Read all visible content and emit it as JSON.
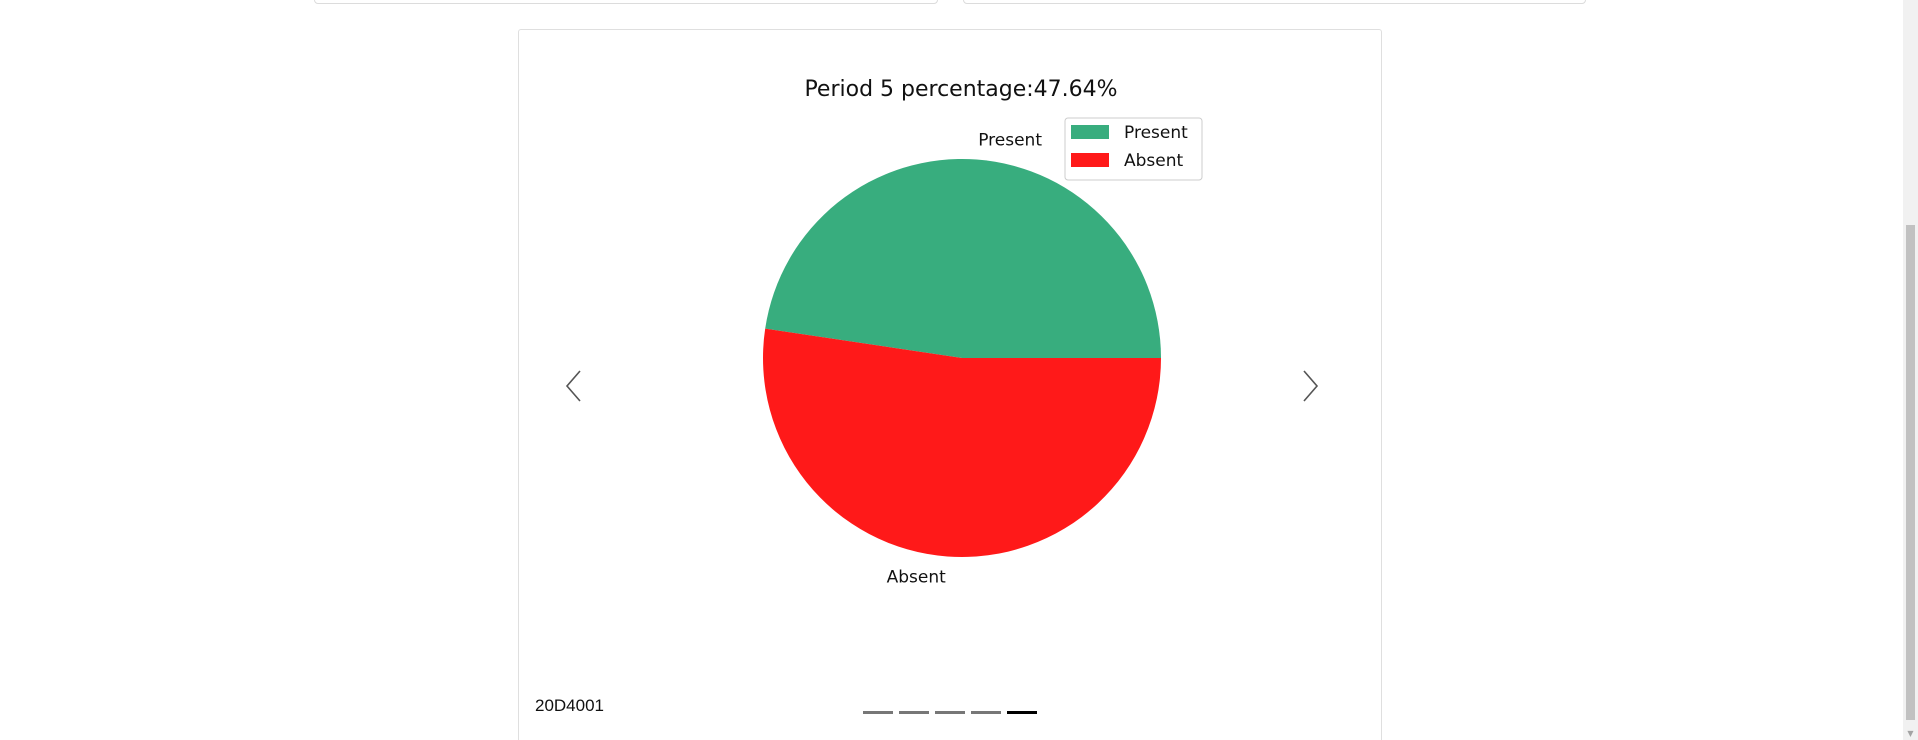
{
  "chart_data": {
    "type": "pie",
    "title": "Period 5 percentage:47.64%",
    "slices": [
      {
        "label": "Present",
        "value": 47.64,
        "color": "#38ad7e"
      },
      {
        "label": "Absent",
        "value": 52.36,
        "color": "#ff1919"
      }
    ],
    "legend": {
      "placement": "top-right",
      "entries": [
        "Present",
        "Absent"
      ]
    }
  },
  "carousel": {
    "caption": "20D4001",
    "indicator_count": 5,
    "active_indicator": 5,
    "prev_icon": "chevron-left-icon",
    "next_icon": "chevron-right-icon"
  },
  "colors": {
    "present": "#38ad7e",
    "absent": "#ff1919"
  }
}
